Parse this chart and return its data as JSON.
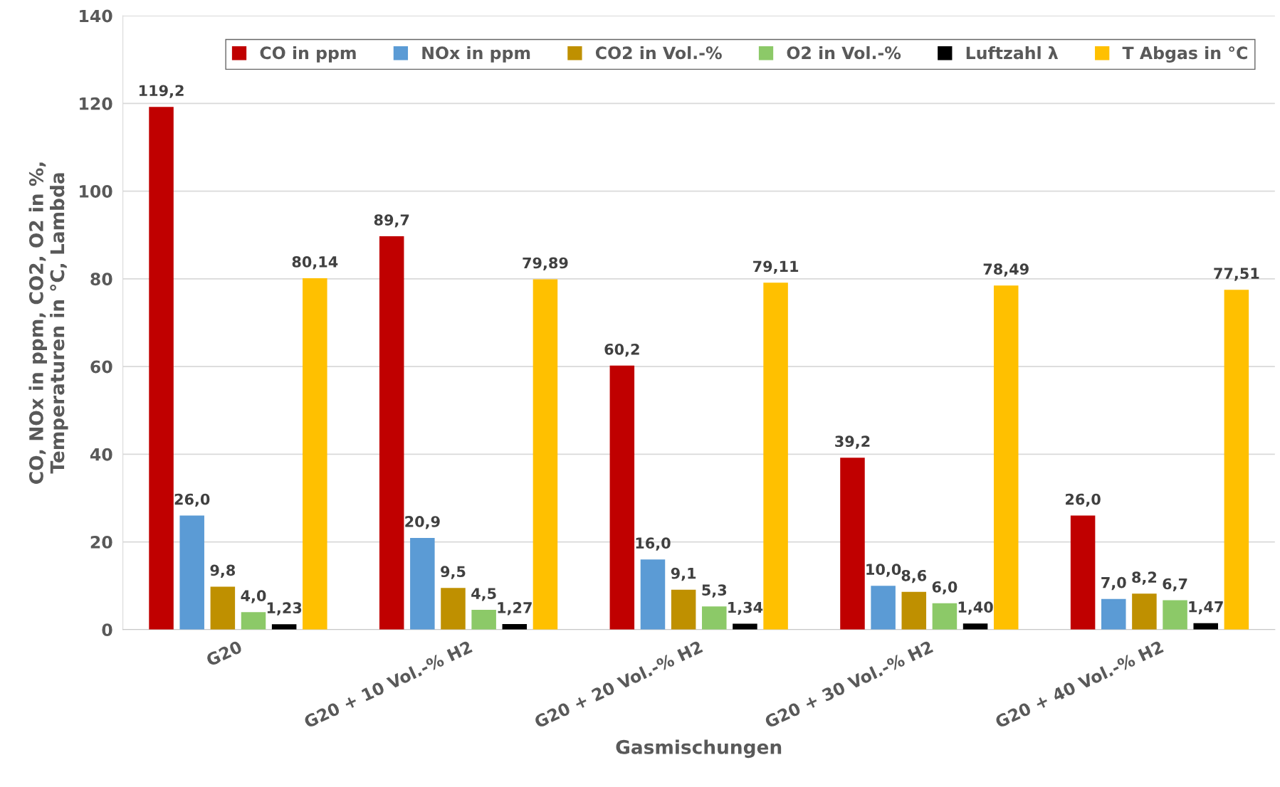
{
  "chart_data": {
    "type": "bar",
    "xlabel": "Gasmischungen",
    "ylabel": "CO, NOx in ppm, CO2, O2 in %,\nTemperaturen in °C, Lambda",
    "categories": [
      "G20",
      "G20 + 10 Vol.-% H2",
      "G20 + 20 Vol.-% H2",
      "G20 + 30 Vol.-% H2",
      "G20 + 40 Vol.-% H2"
    ],
    "series": [
      {
        "name": "CO in ppm",
        "color": "#c00000",
        "values": [
          119.2,
          89.7,
          60.2,
          39.2,
          26.0
        ],
        "value_labels": [
          "119,2",
          "89,7",
          "60,2",
          "39,2",
          "26,0"
        ]
      },
      {
        "name": "NOx in ppm",
        "color": "#5b9bd5",
        "values": [
          26.0,
          20.9,
          16.0,
          10.0,
          7.0
        ],
        "value_labels": [
          "26,0",
          "20,9",
          "16,0",
          "10,0",
          "7,0"
        ]
      },
      {
        "name": "CO2 in Vol.-%",
        "color": "#bf9000",
        "values": [
          9.8,
          9.5,
          9.1,
          8.6,
          8.2
        ],
        "value_labels": [
          "9,8",
          "9,5",
          "9,1",
          "8,6",
          "8,2"
        ]
      },
      {
        "name": "O2 in Vol.-%",
        "color": "#8cc968",
        "values": [
          4.0,
          4.5,
          5.3,
          6.0,
          6.7
        ],
        "value_labels": [
          "4,0",
          "4,5",
          "5,3",
          "6,0",
          "6,7"
        ]
      },
      {
        "name": "Luftzahl λ",
        "color": "#000000",
        "values": [
          1.23,
          1.27,
          1.34,
          1.4,
          1.47
        ],
        "value_labels": [
          "1,23",
          "1,27",
          "1,34",
          "1,40",
          "1,47"
        ]
      },
      {
        "name": "T Abgas in °C",
        "color": "#ffc000",
        "values": [
          80.14,
          79.89,
          79.11,
          78.49,
          77.51
        ],
        "value_labels": [
          "80,14",
          "79,89",
          "79,11",
          "78,49",
          "77,51"
        ]
      }
    ],
    "ylim": [
      0,
      140
    ],
    "yticks": [
      0,
      20,
      40,
      60,
      80,
      100,
      120,
      140
    ],
    "grid": "y",
    "legend": "top right"
  }
}
